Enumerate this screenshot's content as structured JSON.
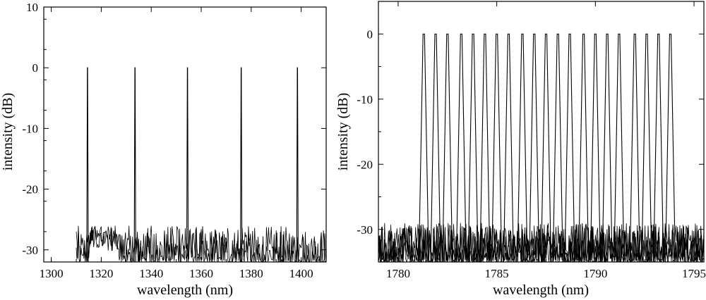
{
  "chart_data": [
    {
      "type": "line",
      "xlabel": "wavelength (nm)",
      "ylabel": "intensity (dB)",
      "xlim": [
        1297,
        1410
      ],
      "ylim": [
        -32,
        10
      ],
      "xticks": [
        1300,
        1320,
        1340,
        1360,
        1380,
        1400
      ],
      "yticks": [
        10,
        0,
        -10,
        -20,
        -30
      ],
      "peaks": [
        {
          "x": 1314.5,
          "y": 0
        },
        {
          "x": 1333.5,
          "y": 0
        },
        {
          "x": 1354.5,
          "y": 0
        },
        {
          "x": 1376.0,
          "y": 0
        },
        {
          "x": 1398.5,
          "y": 0
        }
      ],
      "peak_width_nm": 0.6,
      "noise_floor": -32,
      "noise_max": -26,
      "grid": false
    },
    {
      "type": "line",
      "xlabel": "wavelength (nm)",
      "ylabel": "intensity (dB)",
      "xlim": [
        1779,
        1795.5
      ],
      "ylim": [
        -35,
        5
      ],
      "xticks": [
        1780,
        1785,
        1790,
        1795
      ],
      "yticks": [
        0,
        -10,
        -20,
        -30
      ],
      "peaks": [
        {
          "x": 1781.3,
          "y": 0
        },
        {
          "x": 1781.9,
          "y": 0
        },
        {
          "x": 1782.5,
          "y": 0
        },
        {
          "x": 1783.2,
          "y": 0
        },
        {
          "x": 1783.8,
          "y": 0
        },
        {
          "x": 1784.4,
          "y": 0
        },
        {
          "x": 1785.0,
          "y": 0
        },
        {
          "x": 1785.6,
          "y": 0
        },
        {
          "x": 1786.3,
          "y": 0
        },
        {
          "x": 1786.9,
          "y": 0
        },
        {
          "x": 1787.5,
          "y": 0
        },
        {
          "x": 1788.1,
          "y": 0
        },
        {
          "x": 1788.7,
          "y": 0
        },
        {
          "x": 1789.4,
          "y": 0
        },
        {
          "x": 1790.0,
          "y": 0
        },
        {
          "x": 1790.6,
          "y": 0
        },
        {
          "x": 1791.2,
          "y": 0
        },
        {
          "x": 1792.0,
          "y": 0
        },
        {
          "x": 1792.6,
          "y": 0
        },
        {
          "x": 1793.2,
          "y": 0
        },
        {
          "x": 1793.8,
          "y": 0
        }
      ],
      "peak_width_nm": 0.5,
      "noise_floor": -35,
      "noise_max": -29,
      "grid": false
    }
  ]
}
